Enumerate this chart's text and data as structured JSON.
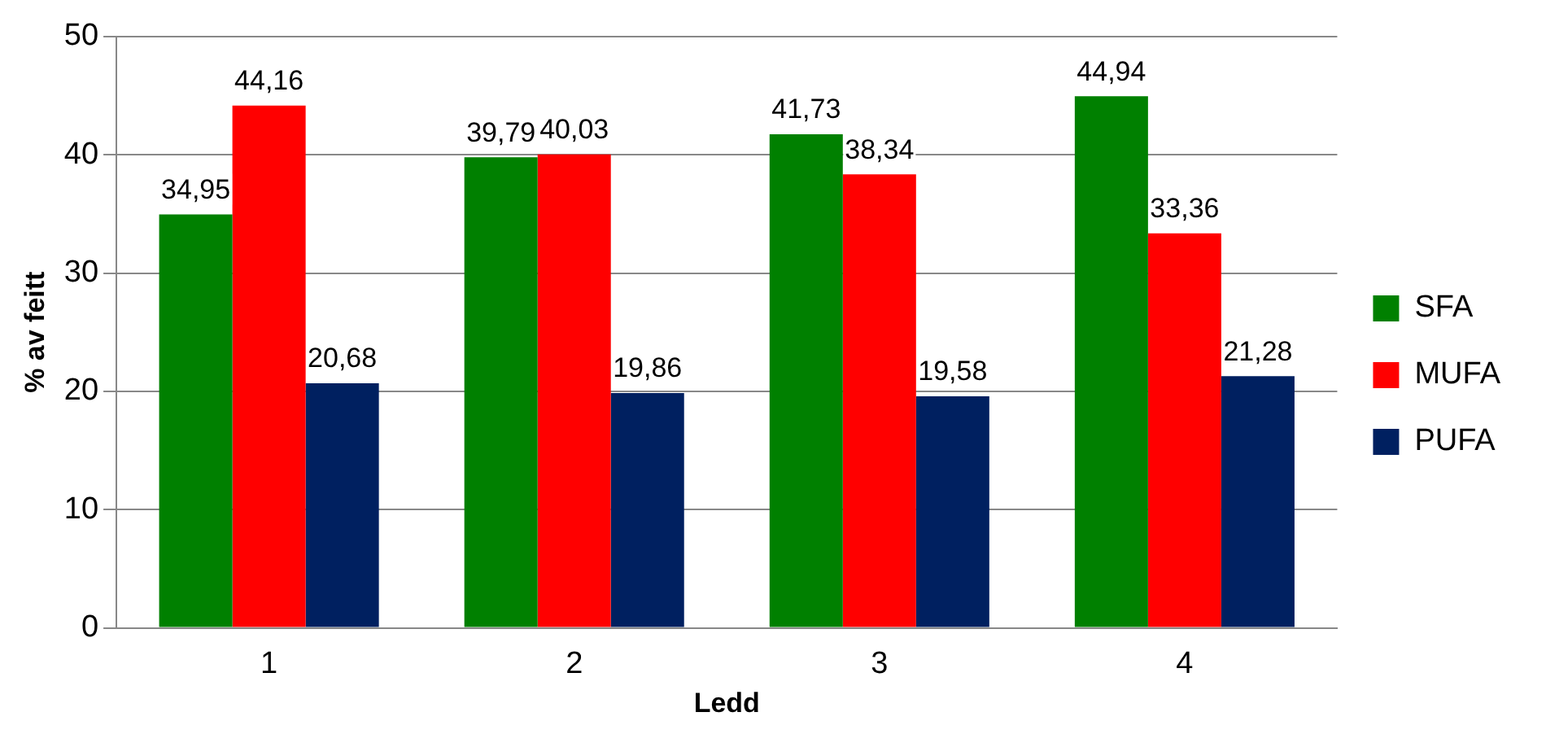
{
  "chart_data": {
    "type": "bar",
    "xlabel": "Ledd",
    "ylabel": "% av feitt",
    "categories": [
      "1",
      "2",
      "3",
      "4"
    ],
    "series": [
      {
        "name": "SFA",
        "color": "#008000",
        "values": [
          34.95,
          39.79,
          41.73,
          44.94
        ],
        "value_labels": [
          "34,95",
          "39,79",
          "41,73",
          "44,94"
        ]
      },
      {
        "name": "MUFA",
        "color": "#ff0000",
        "values": [
          44.16,
          40.03,
          38.34,
          33.36
        ],
        "value_labels": [
          "44,16",
          "40,03",
          "38,34",
          "33,36"
        ]
      },
      {
        "name": "PUFA",
        "color": "#002060",
        "values": [
          20.68,
          19.86,
          19.58,
          21.28
        ],
        "value_labels": [
          "20,68",
          "19,86",
          "19,58",
          "21,28"
        ]
      }
    ],
    "ylim": [
      0,
      50
    ],
    "yticks": [
      0,
      10,
      20,
      30,
      40,
      50
    ],
    "grid": "y",
    "legend": "right"
  }
}
